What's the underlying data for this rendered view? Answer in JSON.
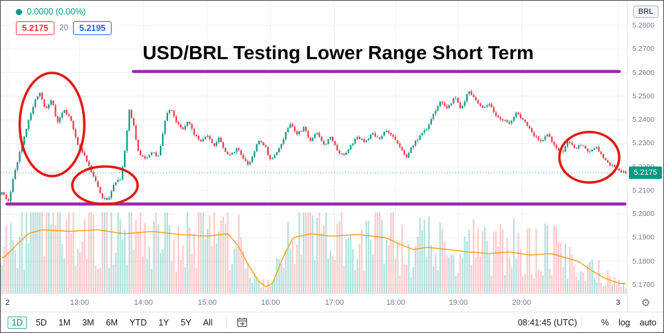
{
  "annotation_title": "USD/BRL Testing Lower Range Short Term",
  "header": {
    "change_text": "0.0000 (0.00%)",
    "bid": "5.2175",
    "spread": "20",
    "ask": "5.2195",
    "currency_label": "BRL"
  },
  "toolbar": {
    "ranges": [
      "1D",
      "5D",
      "1M",
      "3M",
      "6M",
      "YTD",
      "1Y",
      "5Y",
      "All"
    ],
    "active_range": "1D",
    "clock": "08:41:45 (UTC)",
    "scale_buttons": [
      "%",
      "log",
      "auto"
    ]
  },
  "chart_data": {
    "type": "candlestick",
    "symbol": "USD/BRL",
    "title": "USD/BRL Testing Lower Range Short Term",
    "last_price": 5.2175,
    "last_price_label": "5.2175",
    "price_axis": {
      "min": 5.1665,
      "max": 5.2905,
      "labels": [
        "5.2800",
        "5.2700",
        "5.2600",
        "5.2500",
        "5.2400",
        "5.2300",
        "5.2200",
        "5.2100",
        "5.2000",
        "5.1900",
        "5.1800",
        "5.1700"
      ]
    },
    "time_axis": {
      "ticks": [
        {
          "label": "2",
          "pos": 0.011
        },
        {
          "label": "13:00",
          "pos": 0.126
        },
        {
          "label": "14:00",
          "pos": 0.228
        },
        {
          "label": "15:00",
          "pos": 0.33
        },
        {
          "label": "16:00",
          "pos": 0.431
        },
        {
          "label": "17:00",
          "pos": 0.533
        },
        {
          "label": "18:00",
          "pos": 0.631
        },
        {
          "label": "19:00",
          "pos": 0.731
        },
        {
          "label": "20:00",
          "pos": 0.832
        },
        {
          "label": "3",
          "pos": 0.986
        }
      ]
    },
    "range_lines": [
      {
        "price": 5.2605,
        "x_start": 0.212,
        "x_end": 0.988
      },
      {
        "price": 5.2043,
        "x_start": 0.01,
        "x_end": 0.997
      }
    ],
    "ellipses": [
      {
        "cx": 0.082,
        "cy_price": 5.238,
        "rx": 0.0516,
        "ry_price": 0.0219
      },
      {
        "cx": 0.1665,
        "cy_price": 5.2122,
        "rx": 0.0522,
        "ry_price": 0.008
      },
      {
        "cx": 0.9401,
        "cy_price": 5.2241,
        "rx": 0.0478,
        "ry_price": 0.0107
      }
    ],
    "price_path": [
      [
        0.004,
        5.209
      ],
      [
        0.012,
        5.2045
      ],
      [
        0.02,
        5.215
      ],
      [
        0.03,
        5.226
      ],
      [
        0.044,
        5.239
      ],
      [
        0.055,
        5.248
      ],
      [
        0.062,
        5.252
      ],
      [
        0.071,
        5.244
      ],
      [
        0.082,
        5.249
      ],
      [
        0.09,
        5.238
      ],
      [
        0.1,
        5.2445
      ],
      [
        0.11,
        5.241
      ],
      [
        0.118,
        5.235
      ],
      [
        0.123,
        5.229
      ],
      [
        0.134,
        5.225
      ],
      [
        0.145,
        5.218
      ],
      [
        0.154,
        5.2125
      ],
      [
        0.163,
        5.2065
      ],
      [
        0.172,
        5.206
      ],
      [
        0.182,
        5.213
      ],
      [
        0.192,
        5.215
      ],
      [
        0.2,
        5.23
      ],
      [
        0.205,
        5.245
      ],
      [
        0.212,
        5.238
      ],
      [
        0.22,
        5.226
      ],
      [
        0.231,
        5.223
      ],
      [
        0.242,
        5.227
      ],
      [
        0.25,
        5.2235
      ],
      [
        0.258,
        5.232
      ],
      [
        0.264,
        5.242
      ],
      [
        0.272,
        5.2445
      ],
      [
        0.281,
        5.239
      ],
      [
        0.291,
        5.236
      ],
      [
        0.299,
        5.24
      ],
      [
        0.308,
        5.234
      ],
      [
        0.319,
        5.2305
      ],
      [
        0.33,
        5.233
      ],
      [
        0.341,
        5.229
      ],
      [
        0.349,
        5.233
      ],
      [
        0.357,
        5.2265
      ],
      [
        0.368,
        5.225
      ],
      [
        0.379,
        5.2285
      ],
      [
        0.387,
        5.2235
      ],
      [
        0.396,
        5.2205
      ],
      [
        0.404,
        5.226
      ],
      [
        0.413,
        5.2315
      ],
      [
        0.422,
        5.229
      ],
      [
        0.431,
        5.2225
      ],
      [
        0.44,
        5.2255
      ],
      [
        0.451,
        5.2315
      ],
      [
        0.462,
        5.2385
      ],
      [
        0.473,
        5.234
      ],
      [
        0.484,
        5.2365
      ],
      [
        0.495,
        5.231
      ],
      [
        0.505,
        5.2345
      ],
      [
        0.516,
        5.229
      ],
      [
        0.527,
        5.2325
      ],
      [
        0.538,
        5.227
      ],
      [
        0.549,
        5.2245
      ],
      [
        0.56,
        5.2295
      ],
      [
        0.571,
        5.233
      ],
      [
        0.582,
        5.23
      ],
      [
        0.593,
        5.2345
      ],
      [
        0.604,
        5.2315
      ],
      [
        0.615,
        5.2355
      ],
      [
        0.626,
        5.233
      ],
      [
        0.637,
        5.2285
      ],
      [
        0.648,
        5.224
      ],
      [
        0.659,
        5.2295
      ],
      [
        0.67,
        5.233
      ],
      [
        0.681,
        5.2365
      ],
      [
        0.692,
        5.243
      ],
      [
        0.703,
        5.248
      ],
      [
        0.714,
        5.245
      ],
      [
        0.725,
        5.2495
      ],
      [
        0.736,
        5.2445
      ],
      [
        0.747,
        5.252
      ],
      [
        0.758,
        5.249
      ],
      [
        0.769,
        5.245
      ],
      [
        0.78,
        5.247
      ],
      [
        0.791,
        5.242
      ],
      [
        0.802,
        5.24
      ],
      [
        0.813,
        5.2385
      ],
      [
        0.824,
        5.2435
      ],
      [
        0.832,
        5.2405
      ],
      [
        0.841,
        5.2375
      ],
      [
        0.852,
        5.2335
      ],
      [
        0.863,
        5.2305
      ],
      [
        0.874,
        5.234
      ],
      [
        0.885,
        5.2285
      ],
      [
        0.896,
        5.226
      ],
      [
        0.907,
        5.231
      ],
      [
        0.918,
        5.2275
      ],
      [
        0.929,
        5.23
      ],
      [
        0.94,
        5.226
      ],
      [
        0.951,
        5.2285
      ],
      [
        0.962,
        5.224
      ],
      [
        0.973,
        5.221
      ],
      [
        0.984,
        5.219
      ],
      [
        0.996,
        5.2175
      ]
    ],
    "volume_ma": [
      [
        0.005,
        0.45
      ],
      [
        0.044,
        0.75
      ],
      [
        0.066,
        0.8
      ],
      [
        0.11,
        0.78
      ],
      [
        0.154,
        0.8
      ],
      [
        0.198,
        0.75
      ],
      [
        0.242,
        0.78
      ],
      [
        0.286,
        0.74
      ],
      [
        0.33,
        0.72
      ],
      [
        0.363,
        0.75
      ],
      [
        0.379,
        0.6
      ],
      [
        0.396,
        0.35
      ],
      [
        0.412,
        0.15
      ],
      [
        0.423,
        0.08
      ],
      [
        0.434,
        0.12
      ],
      [
        0.451,
        0.45
      ],
      [
        0.467,
        0.7
      ],
      [
        0.495,
        0.75
      ],
      [
        0.527,
        0.72
      ],
      [
        0.571,
        0.74
      ],
      [
        0.615,
        0.7
      ],
      [
        0.637,
        0.62
      ],
      [
        0.659,
        0.55
      ],
      [
        0.681,
        0.58
      ],
      [
        0.714,
        0.55
      ],
      [
        0.747,
        0.52
      ],
      [
        0.78,
        0.5
      ],
      [
        0.813,
        0.52
      ],
      [
        0.846,
        0.48
      ],
      [
        0.879,
        0.5
      ],
      [
        0.901,
        0.45
      ],
      [
        0.923,
        0.4
      ],
      [
        0.945,
        0.28
      ],
      [
        0.967,
        0.18
      ],
      [
        0.989,
        0.12
      ]
    ],
    "colors": {
      "up": "#089981",
      "down": "#f23645",
      "vol_up": "rgba(38,166,154,0.35)",
      "vol_down": "rgba(239,83,80,0.30)",
      "ma": "#ff9800",
      "range": "#9c27b0",
      "ellipse": "#e3170d",
      "grid": "#eef1f7",
      "axis_text": "#787b86",
      "badge_bg": "#089981"
    }
  }
}
